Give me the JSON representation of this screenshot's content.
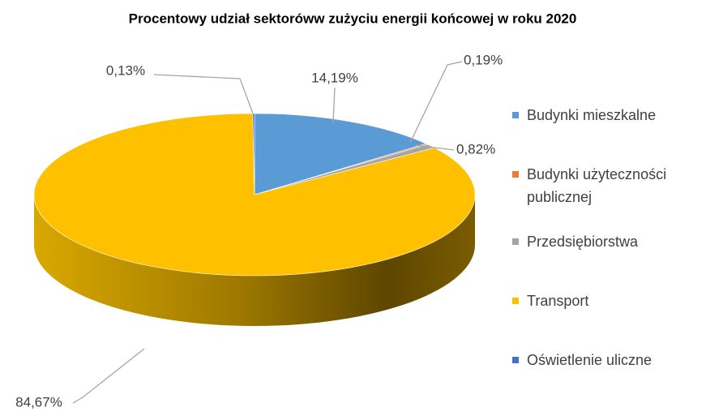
{
  "chart_data": {
    "type": "pie",
    "title": "Procentowy udział sektoróww zużyciu energii końcowej w roku 2020",
    "categories": [
      "Budynki mieszkalne",
      "Budynki użyteczności publicznej",
      "Przedsiębiorstwa",
      "Transport",
      "Oświetlenie uliczne"
    ],
    "values": [
      14.19,
      0.19,
      0.82,
      84.67,
      0.13
    ],
    "value_labels": [
      "14,19%",
      "0,19%",
      "0,82%",
      "84,67%",
      "0,13%"
    ],
    "colors": [
      "#5b9bd5",
      "#ed7d31",
      "#a5a5a5",
      "#ffc000",
      "#4472c4"
    ],
    "legend": "right"
  }
}
